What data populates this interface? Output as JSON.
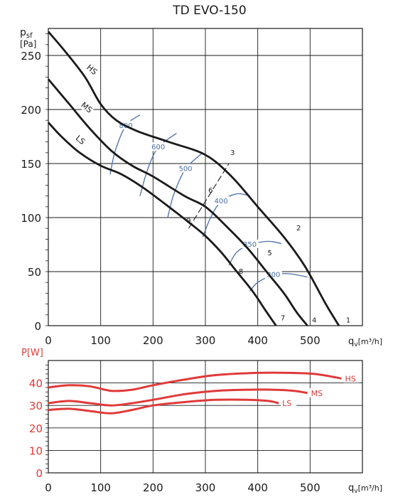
{
  "chart_data": [
    {
      "type": "line",
      "title": "TD EVO-150",
      "ylabel_main": "p",
      "ylabel_sub": "sf",
      "ylabel_unit": "[Pa]",
      "xlabel_main": "q",
      "xlabel_sub": "v",
      "xlabel_unit": "[m³/h]",
      "xlim": [
        0,
        600
      ],
      "ylim": [
        0,
        275
      ],
      "xticks": [
        "0",
        "100",
        "200",
        "300",
        "400",
        "500"
      ],
      "xtick_values": [
        0,
        100,
        200,
        300,
        400,
        500
      ],
      "yticks": [
        "0",
        "50",
        "100",
        "150",
        "200",
        "250"
      ],
      "ytick_values": [
        0,
        50,
        100,
        150,
        200,
        250
      ],
      "grid": true,
      "colors": {
        "curve": "#1a1a1a",
        "iso": "#4a6fa8",
        "grid": "#1a1a1a"
      },
      "series": [
        {
          "name": "HS",
          "x": [
            0,
            30,
            70,
            100,
            130,
            170,
            230,
            300,
            350,
            400,
            450,
            490,
            530,
            555
          ],
          "y": [
            272,
            255,
            230,
            205,
            190,
            180,
            170,
            158,
            138,
            110,
            82,
            55,
            20,
            0
          ]
        },
        {
          "name": "MS",
          "x": [
            0,
            40,
            80,
            120,
            160,
            200,
            260,
            300,
            340,
            380,
            420,
            450,
            475,
            495
          ],
          "y": [
            228,
            205,
            182,
            162,
            148,
            138,
            120,
            110,
            92,
            72,
            48,
            30,
            12,
            0
          ]
        },
        {
          "name": "LS",
          "x": [
            0,
            25,
            60,
            100,
            140,
            180,
            230,
            270,
            300,
            330,
            360,
            390,
            415,
            435
          ],
          "y": [
            188,
            175,
            160,
            148,
            140,
            128,
            110,
            95,
            83,
            68,
            50,
            32,
            14,
            0
          ]
        }
      ],
      "iso_lines": [
        {
          "label": "800",
          "x": [
            118,
            128,
            148,
            175
          ],
          "y": [
            140,
            162,
            185,
            195
          ]
        },
        {
          "label": "600",
          "x": [
            175,
            190,
            210,
            245
          ],
          "y": [
            120,
            145,
            165,
            178
          ]
        },
        {
          "label": "500",
          "x": [
            228,
            240,
            262,
            295
          ],
          "y": [
            100,
            122,
            145,
            160
          ]
        },
        {
          "label": "400",
          "x": [
            295,
            310,
            330,
            360,
            385
          ],
          "y": [
            82,
            100,
            115,
            122,
            120
          ]
        },
        {
          "label": "350",
          "x": [
            345,
            360,
            385,
            420,
            445
          ],
          "y": [
            56,
            68,
            75,
            78,
            76
          ]
        },
        {
          "label": "300",
          "x": [
            385,
            400,
            430,
            460,
            495
          ],
          "y": [
            32,
            40,
            47,
            48,
            45
          ]
        }
      ],
      "labels": [
        {
          "text": "HS",
          "x": 80,
          "y": 235
        },
        {
          "text": "MS",
          "x": 70,
          "y": 200
        },
        {
          "text": "LS",
          "x": 58,
          "y": 170
        },
        {
          "text": "1",
          "x": 573,
          "y": 3
        },
        {
          "text": "2",
          "x": 478,
          "y": 88
        },
        {
          "text": "3",
          "x": 352,
          "y": 158
        },
        {
          "text": "4",
          "x": 508,
          "y": 3
        },
        {
          "text": "5",
          "x": 423,
          "y": 65
        },
        {
          "text": "6",
          "x": 310,
          "y": 123
        },
        {
          "text": "7",
          "x": 448,
          "y": 5
        },
        {
          "text": "8",
          "x": 368,
          "y": 48
        },
        {
          "text": "9",
          "x": 268,
          "y": 95
        }
      ]
    },
    {
      "type": "line",
      "ylabel": "P[W]",
      "xlabel_main": "q",
      "xlabel_sub": "v",
      "xlabel_unit": "[m³/h]",
      "xlim": [
        0,
        600
      ],
      "ylim": [
        0,
        50
      ],
      "xticks": [
        "0",
        "100",
        "200",
        "300",
        "400",
        "500"
      ],
      "xtick_values": [
        0,
        100,
        200,
        300,
        400,
        500
      ],
      "yticks": [
        "0",
        "10",
        "20",
        "30",
        "40"
      ],
      "ytick_values": [
        0,
        10,
        20,
        30,
        40
      ],
      "grid": true,
      "colors": {
        "curve": "#e03a3a",
        "axis_label": "#e03a3a"
      },
      "series": [
        {
          "name": "HS",
          "x": [
            0,
            40,
            80,
            120,
            160,
            200,
            260,
            320,
            400,
            460,
            510,
            560
          ],
          "y": [
            38,
            39,
            38.5,
            36.5,
            37,
            39,
            41.5,
            43.5,
            44.5,
            44.5,
            44,
            42
          ]
        },
        {
          "name": "MS",
          "x": [
            0,
            40,
            80,
            120,
            160,
            200,
            260,
            320,
            380,
            430,
            470,
            495
          ],
          "y": [
            31,
            32,
            31,
            30,
            31,
            32.5,
            35,
            36.5,
            37,
            37,
            36.5,
            35.5
          ]
        },
        {
          "name": "LS",
          "x": [
            0,
            40,
            80,
            120,
            160,
            200,
            260,
            320,
            380,
            420,
            440
          ],
          "y": [
            28,
            28.5,
            27.5,
            26.5,
            28,
            30,
            31.5,
            32.5,
            32.5,
            32,
            31
          ]
        }
      ]
    }
  ]
}
